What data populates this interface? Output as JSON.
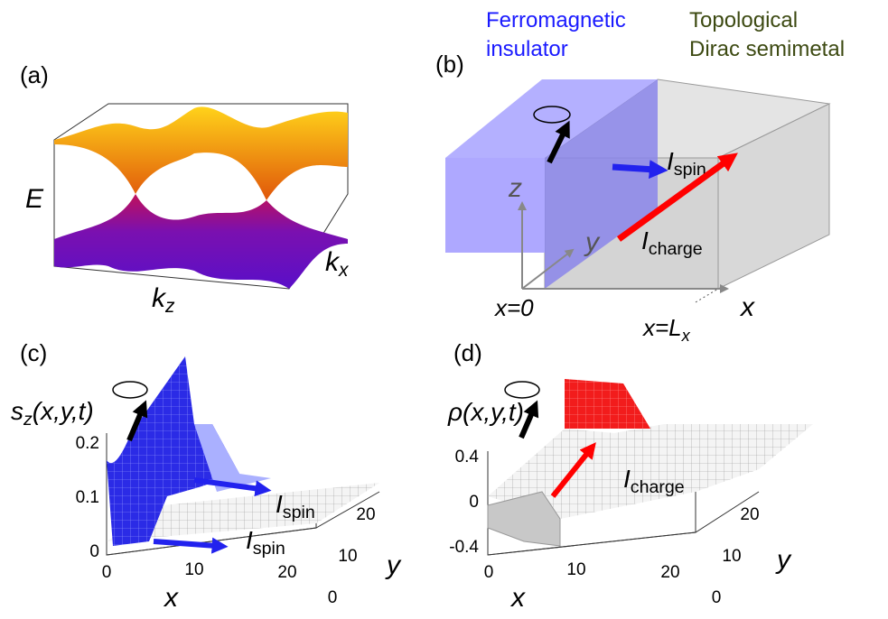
{
  "panel_a": {
    "label": "(a)",
    "energy": "E",
    "kz": {
      "base": "k",
      "sub": "z"
    },
    "kx": {
      "base": "k",
      "sub": "x"
    }
  },
  "panel_b": {
    "label": "(b)",
    "ferromagnet": [
      "Ferromagnetic",
      "insulator"
    ],
    "semimetal": [
      "Topological",
      "Dirac semimetal"
    ],
    "spin_current": {
      "base": "I",
      "sub": "spin"
    },
    "charge_current": {
      "base": "I",
      "sub": "charge"
    },
    "axis_z": "z",
    "axis_y": "y",
    "axis_x": "x",
    "x0": "x=0",
    "xL": {
      "base": "x=L",
      "sub": "x"
    }
  },
  "panel_c": {
    "label": "(c)",
    "quantity": {
      "base": "s",
      "sub": "z",
      "rest": "(x,y,t)"
    },
    "zticks": [
      "0.2",
      "0.1",
      "0"
    ],
    "xticks": [
      "0",
      "10",
      "20"
    ],
    "yticks": [
      "0",
      "10",
      "20"
    ],
    "axis_x": "x",
    "axis_y": "y",
    "spin_current_top": {
      "base": "I",
      "sub": "spin"
    },
    "spin_current_bottom": {
      "base": "I",
      "sub": "spin"
    }
  },
  "panel_d": {
    "label": "(d)",
    "quantity": "ρ(x,y,t)",
    "zticks": [
      "0.4",
      "0",
      "-0.4"
    ],
    "xticks": [
      "0",
      "10",
      "20"
    ],
    "yticks": [
      "0",
      "10",
      "20"
    ],
    "axis_x": "x",
    "axis_y": "y",
    "charge_current": {
      "base": "I",
      "sub": "charge"
    }
  }
}
